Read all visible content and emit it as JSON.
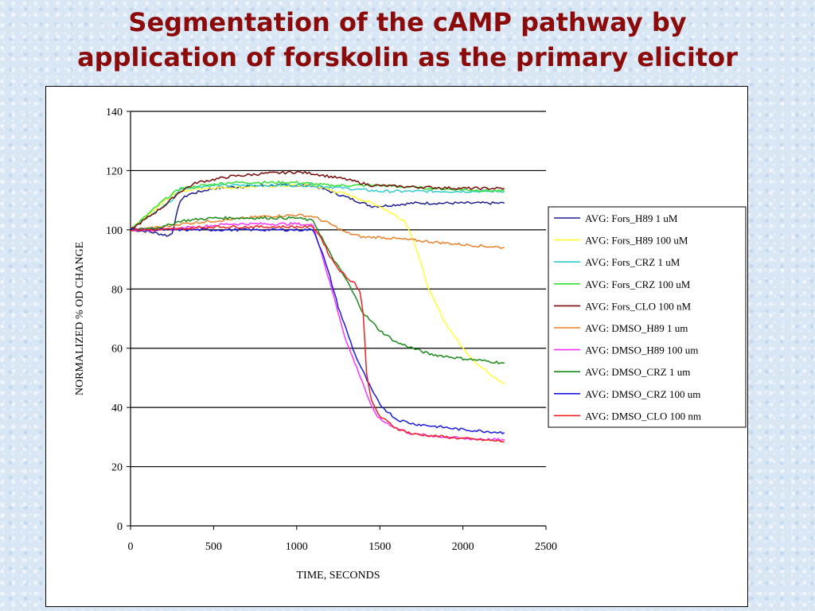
{
  "slide": {
    "title_line1": "Segmentation of the cAMP pathway by",
    "title_line2": "application of forskolin as the primary elicitor"
  },
  "chart_data": {
    "type": "line",
    "title": "",
    "xlabel": "TIME, SECONDS",
    "ylabel": "NORMALIZED % OD CHANGE",
    "xlim": [
      0,
      2500
    ],
    "ylim": [
      0,
      140
    ],
    "xticks": [
      0,
      500,
      1000,
      1500,
      2000,
      2500
    ],
    "yticks": [
      0,
      20,
      40,
      60,
      80,
      100,
      120,
      140
    ],
    "grid": "horizontal",
    "legend": "right",
    "series": [
      {
        "name": "AVG: Fors_H89 1 uM",
        "color": "#1f1f8f",
        "points": [
          [
            0,
            100
          ],
          [
            100,
            99.5
          ],
          [
            230,
            98
          ],
          [
            250,
            99
          ],
          [
            300,
            110
          ],
          [
            350,
            112
          ],
          [
            500,
            114
          ],
          [
            800,
            115
          ],
          [
            1000,
            115
          ],
          [
            1100,
            115
          ],
          [
            1300,
            111
          ],
          [
            1450,
            108
          ],
          [
            1500,
            108
          ],
          [
            1700,
            109
          ],
          [
            2000,
            109
          ],
          [
            2250,
            109
          ]
        ]
      },
      {
        "name": "AVG: Fors_H89 100 uM",
        "color": "#ffff33",
        "points": [
          [
            0,
            100
          ],
          [
            250,
            112
          ],
          [
            400,
            114
          ],
          [
            1000,
            115
          ],
          [
            1100,
            115
          ],
          [
            1300,
            112
          ],
          [
            1500,
            108
          ],
          [
            1650,
            103
          ],
          [
            1700,
            97
          ],
          [
            1750,
            88
          ],
          [
            1800,
            79
          ],
          [
            1900,
            68
          ],
          [
            2000,
            60
          ],
          [
            2100,
            54
          ],
          [
            2250,
            48
          ]
        ]
      },
      {
        "name": "AVG: Fors_CRZ 1 uM",
        "color": "#33cccc",
        "points": [
          [
            0,
            100
          ],
          [
            250,
            110
          ],
          [
            300,
            114
          ],
          [
            500,
            115
          ],
          [
            1000,
            115
          ],
          [
            1100,
            115
          ],
          [
            1300,
            114
          ],
          [
            1500,
            113
          ],
          [
            1700,
            113
          ],
          [
            2000,
            113
          ],
          [
            2250,
            113
          ]
        ]
      },
      {
        "name": "AVG: Fors_CRZ 100 uM",
        "color": "#33e033",
        "points": [
          [
            0,
            100
          ],
          [
            200,
            110
          ],
          [
            300,
            114
          ],
          [
            600,
            116
          ],
          [
            1000,
            116
          ],
          [
            1200,
            115
          ],
          [
            1500,
            115
          ],
          [
            1800,
            114
          ],
          [
            2250,
            113
          ]
        ]
      },
      {
        "name": "AVG: Fors_CLO 100 nM",
        "color": "#7a0a0a",
        "points": [
          [
            0,
            100
          ],
          [
            200,
            108
          ],
          [
            300,
            113
          ],
          [
            400,
            116
          ],
          [
            600,
            118
          ],
          [
            800,
            119
          ],
          [
            1000,
            119.5
          ],
          [
            1100,
            119
          ],
          [
            1300,
            117
          ],
          [
            1450,
            115
          ],
          [
            1700,
            114.5
          ],
          [
            2000,
            114
          ],
          [
            2250,
            114
          ]
        ]
      },
      {
        "name": "AVG: DMSO_H89 1 um",
        "color": "#e8822a",
        "points": [
          [
            0,
            100
          ],
          [
            200,
            101
          ],
          [
            300,
            102
          ],
          [
            500,
            103
          ],
          [
            700,
            104
          ],
          [
            800,
            104.5
          ],
          [
            1000,
            105
          ],
          [
            1100,
            104.5
          ],
          [
            1200,
            102
          ],
          [
            1300,
            99
          ],
          [
            1400,
            97.5
          ],
          [
            1500,
            97.5
          ],
          [
            1700,
            96.5
          ],
          [
            2000,
            95
          ],
          [
            2250,
            94
          ]
        ]
      },
      {
        "name": "AVG: DMSO_H89 100 um",
        "color": "#ff33ff",
        "points": [
          [
            0,
            100
          ],
          [
            200,
            100
          ],
          [
            400,
            101
          ],
          [
            600,
            102
          ],
          [
            1000,
            102
          ],
          [
            1100,
            101.5
          ],
          [
            1150,
            92
          ],
          [
            1200,
            82
          ],
          [
            1250,
            72
          ],
          [
            1300,
            62
          ],
          [
            1350,
            55
          ],
          [
            1400,
            48
          ],
          [
            1450,
            40
          ],
          [
            1500,
            36
          ],
          [
            1600,
            33
          ],
          [
            1700,
            31
          ],
          [
            2000,
            29.5
          ],
          [
            2250,
            29
          ]
        ]
      },
      {
        "name": "AVG: DMSO_CRZ 1 um",
        "color": "#1a8a1a",
        "points": [
          [
            0,
            100
          ],
          [
            200,
            101
          ],
          [
            300,
            103
          ],
          [
            500,
            104
          ],
          [
            1000,
            104
          ],
          [
            1100,
            103
          ],
          [
            1200,
            92
          ],
          [
            1300,
            83
          ],
          [
            1400,
            72
          ],
          [
            1500,
            66
          ],
          [
            1600,
            62
          ],
          [
            1700,
            60
          ],
          [
            1800,
            58
          ],
          [
            2000,
            56.5
          ],
          [
            2250,
            55
          ]
        ]
      },
      {
        "name": "AVG: DMSO_CRZ 100 um",
        "color": "#1a1ae0",
        "points": [
          [
            0,
            100
          ],
          [
            200,
            100
          ],
          [
            500,
            100
          ],
          [
            1000,
            100
          ],
          [
            1100,
            100
          ],
          [
            1150,
            93
          ],
          [
            1200,
            84
          ],
          [
            1250,
            74
          ],
          [
            1300,
            66
          ],
          [
            1350,
            58
          ],
          [
            1400,
            52
          ],
          [
            1450,
            46
          ],
          [
            1500,
            41
          ],
          [
            1600,
            36
          ],
          [
            1700,
            34.5
          ],
          [
            2000,
            32.5
          ],
          [
            2250,
            31.5
          ]
        ]
      },
      {
        "name": "AVG: DMSO_CLO 100 nm",
        "color": "#ee2222",
        "points": [
          [
            0,
            100
          ],
          [
            200,
            100
          ],
          [
            500,
            101
          ],
          [
            1000,
            101
          ],
          [
            1100,
            101
          ],
          [
            1150,
            97
          ],
          [
            1200,
            91
          ],
          [
            1250,
            87
          ],
          [
            1300,
            84
          ],
          [
            1350,
            82
          ],
          [
            1380,
            79
          ],
          [
            1400,
            72
          ],
          [
            1420,
            52
          ],
          [
            1450,
            42
          ],
          [
            1500,
            37
          ],
          [
            1600,
            33
          ],
          [
            1700,
            31
          ],
          [
            2000,
            29.5
          ],
          [
            2250,
            28.5
          ]
        ]
      }
    ]
  }
}
